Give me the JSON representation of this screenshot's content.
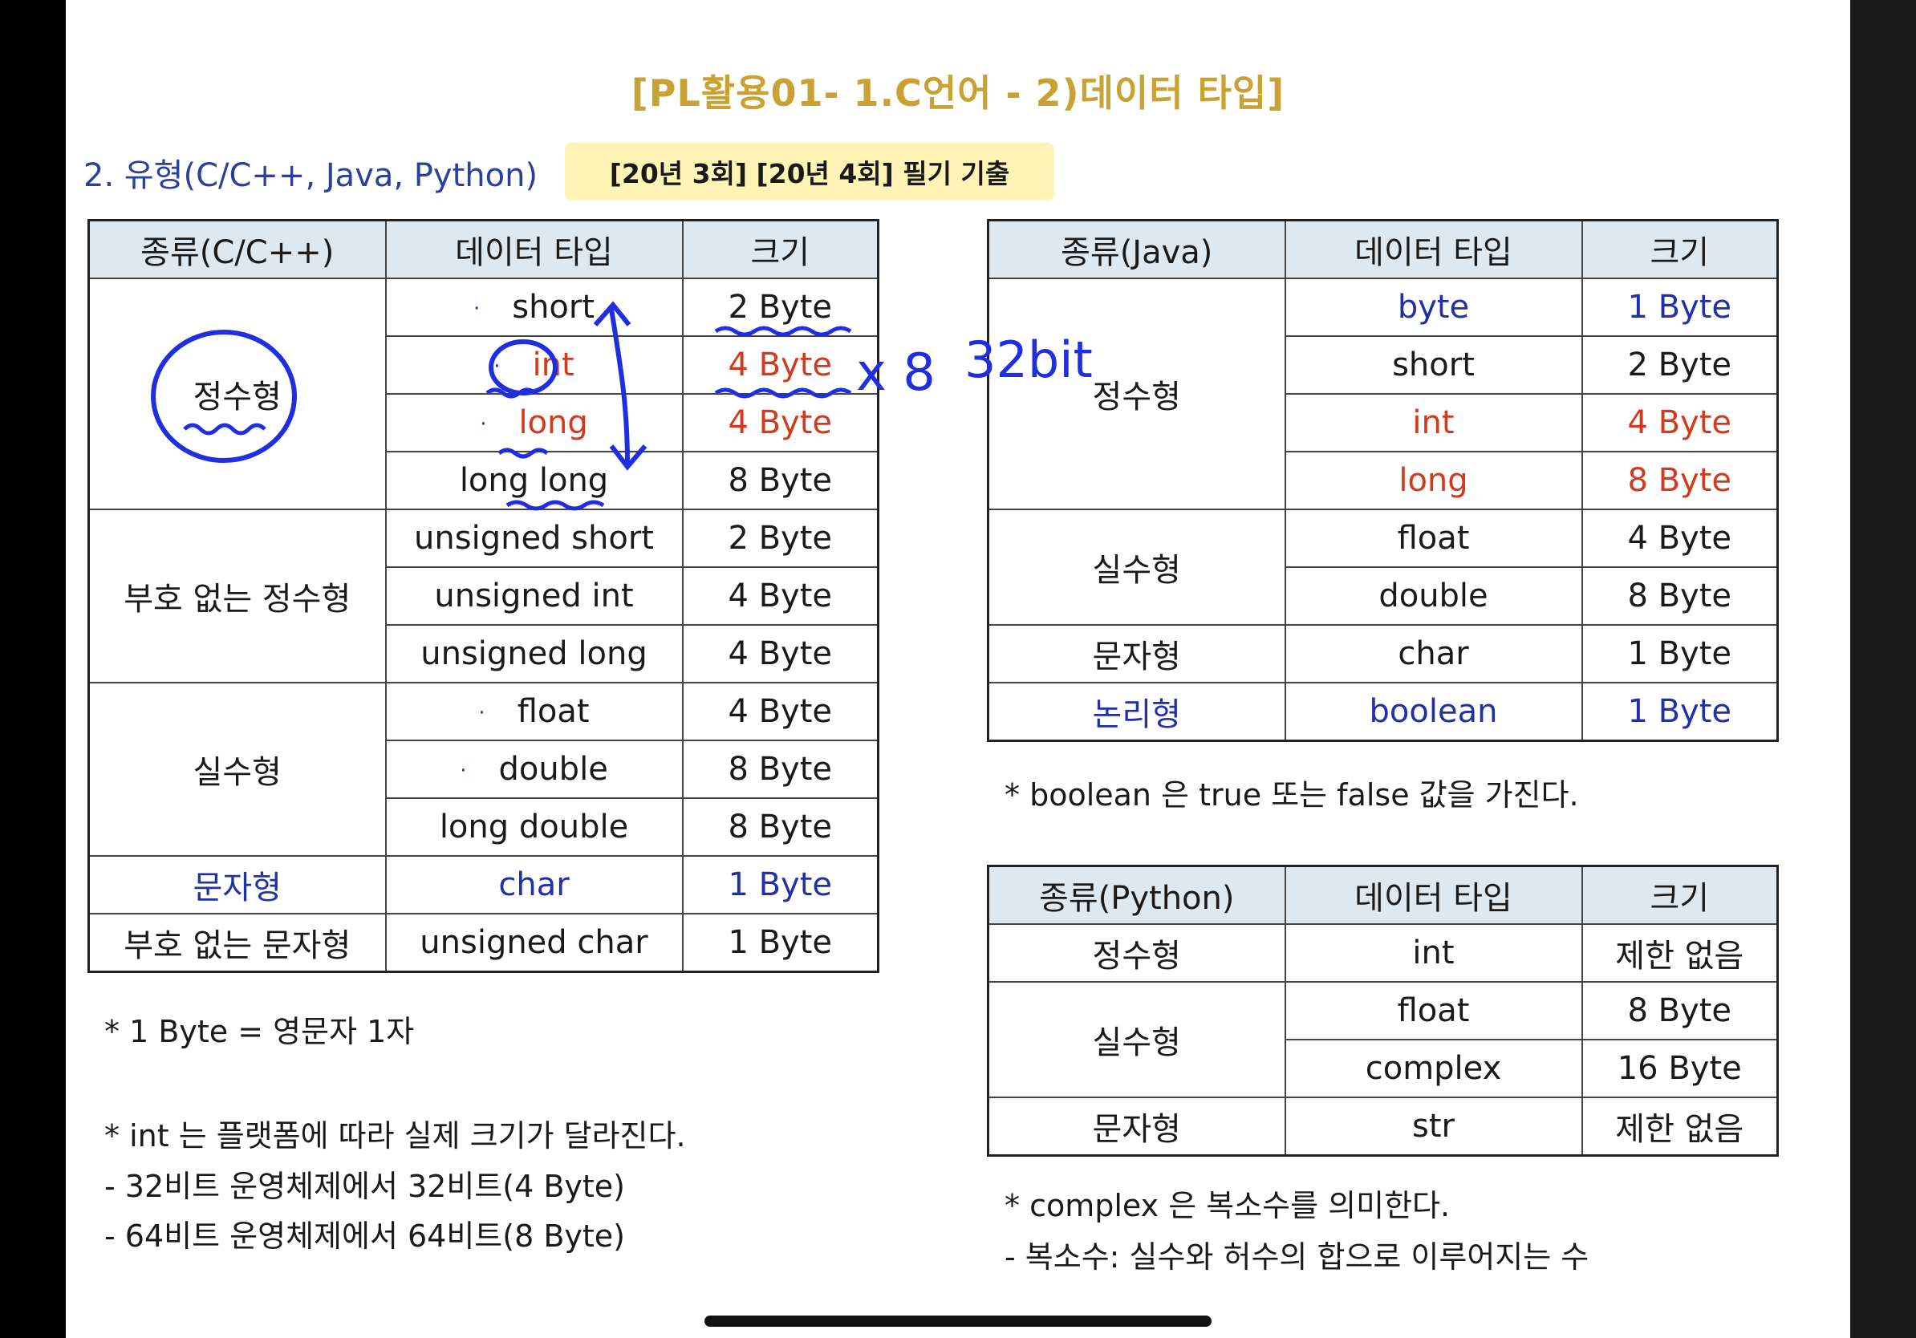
{
  "title": "[PL활용01- 1.C언어 - 2)데이터 타입]",
  "section_title": "2. 유형(C/C++, Java, Python)",
  "exam_tag": "[20년 3회] [20년 4회] 필기 기출",
  "c_table": {
    "headers": [
      "종류(C/C++)",
      "데이터 타입",
      "크기"
    ],
    "groups": [
      {
        "category": "정수형",
        "rows": [
          {
            "type": "short",
            "size": "2 Byte"
          },
          {
            "type": "int",
            "size": "4 Byte"
          },
          {
            "type": "long",
            "size": "4 Byte"
          },
          {
            "type": "long long",
            "size": "8 Byte"
          }
        ]
      },
      {
        "category": "부호 없는 정수형",
        "rows": [
          {
            "type": "unsigned short",
            "size": "2 Byte"
          },
          {
            "type": "unsigned int",
            "size": "4 Byte"
          },
          {
            "type": "unsigned long",
            "size": "4 Byte"
          }
        ]
      },
      {
        "category": "실수형",
        "rows": [
          {
            "type": "float",
            "size": "4 Byte"
          },
          {
            "type": "double",
            "size": "8 Byte"
          },
          {
            "type": "long double",
            "size": "8 Byte"
          }
        ]
      },
      {
        "category": "문자형",
        "rows": [
          {
            "type": "char",
            "size": "1 Byte"
          }
        ]
      },
      {
        "category": "부호 없는 문자형",
        "rows": [
          {
            "type": "unsigned char",
            "size": "1 Byte"
          }
        ]
      }
    ],
    "bullet": "·"
  },
  "java_table": {
    "headers": [
      "종류(Java)",
      "데이터 타입",
      "크기"
    ],
    "groups": [
      {
        "category": "정수형",
        "rows": [
          {
            "type": "byte",
            "size": "1 Byte"
          },
          {
            "type": "short",
            "size": "2 Byte"
          },
          {
            "type": "int",
            "size": "4 Byte"
          },
          {
            "type": "long",
            "size": "8 Byte"
          }
        ]
      },
      {
        "category": "실수형",
        "rows": [
          {
            "type": "float",
            "size": "4 Byte"
          },
          {
            "type": "double",
            "size": "8 Byte"
          }
        ]
      },
      {
        "category": "문자형",
        "rows": [
          {
            "type": "char",
            "size": "1 Byte"
          }
        ]
      },
      {
        "category": "논리형",
        "rows": [
          {
            "type": "boolean",
            "size": "1 Byte"
          }
        ]
      }
    ]
  },
  "python_table": {
    "headers": [
      "종류(Python)",
      "데이터 타입",
      "크기"
    ],
    "groups": [
      {
        "category": "정수형",
        "rows": [
          {
            "type": "int",
            "size": "제한 없음"
          }
        ]
      },
      {
        "category": "실수형",
        "rows": [
          {
            "type": "float",
            "size": "8 Byte"
          },
          {
            "type": "complex",
            "size": "16 Byte"
          }
        ]
      },
      {
        "category": "문자형",
        "rows": [
          {
            "type": "str",
            "size": "제한 없음"
          }
        ]
      }
    ]
  },
  "notes": {
    "c_byte": "* 1 Byte = 영문자 1자",
    "int_platform": "* int 는 플랫폼에 따라 실제 크기가 달라진다.",
    "bit32": "- 32비트 운영체제에서 32비트(4 Byte)",
    "bit64": "- 64비트 운영체제에서 64비트(8 Byte)",
    "boolean": "* boolean 은 true 또는 false 값을 가진다.",
    "complex": "* complex 은 복소수를 의미한다.",
    "complex_def": "- 복소수: 실수와 허수의 합으로 이루어지는 수"
  },
  "handwriting": {
    "times8": "x 8",
    "bit32": "32bit"
  },
  "colors": {
    "title": "#c8a233",
    "section": "#2b3f9c",
    "header_bg": "#dde8f0",
    "tag_bg": "#fff3b6",
    "blue": "#2230a8",
    "red": "#d23a1e"
  }
}
